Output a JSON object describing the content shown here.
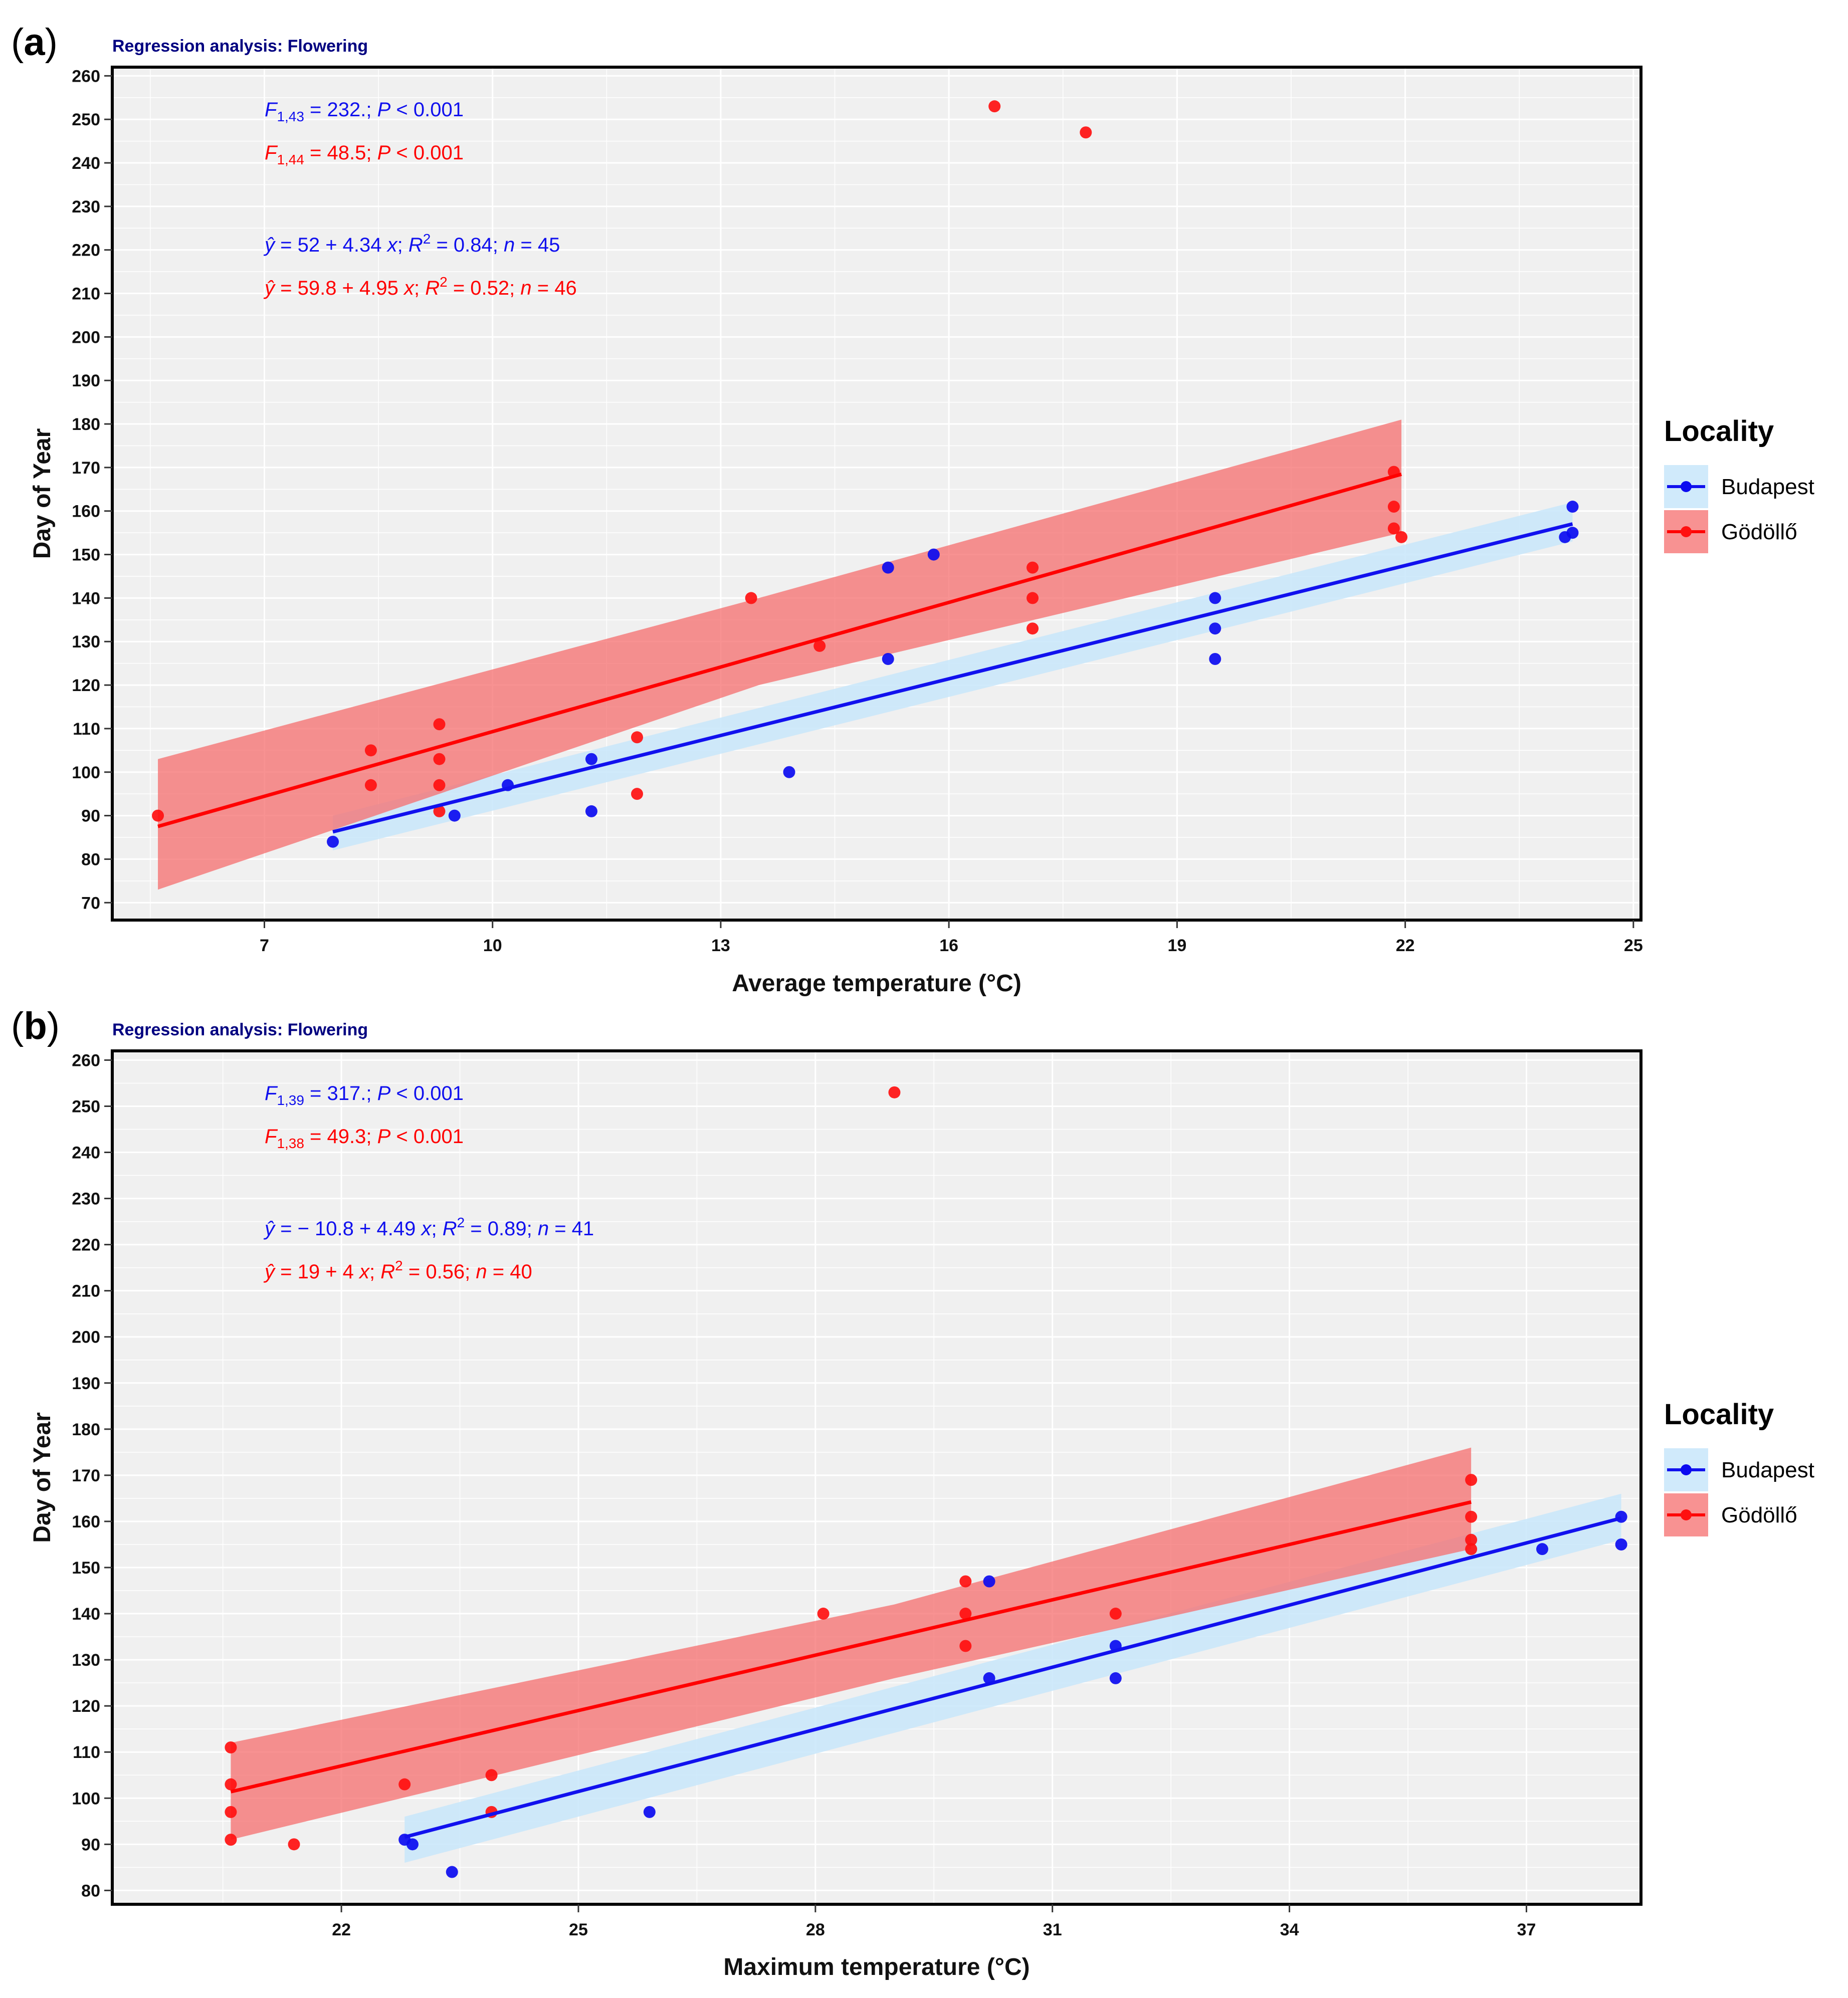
{
  "figure": {
    "legend_title": "Locality",
    "legend_items": [
      {
        "name": "Budapest",
        "color": "#0b0bf0",
        "band": "#d3ecfb"
      },
      {
        "name": "Gödöllő",
        "color": "#ff0000",
        "band": "#f89292"
      }
    ]
  },
  "chart_data": [
    {
      "type": "scatter",
      "panel_label": "(a)",
      "title": "Regression analysis: Flowering",
      "xlabel": "Average temperature (°C)",
      "ylabel": "Day of Year",
      "xlim": [
        5.0,
        25.1
      ],
      "ylim": [
        66,
        262
      ],
      "xticks": [
        7,
        10,
        13,
        16,
        19,
        22,
        25
      ],
      "yticks": [
        70,
        80,
        90,
        100,
        110,
        120,
        130,
        140,
        150,
        160,
        170,
        180,
        190,
        200,
        210,
        220,
        230,
        240,
        250,
        260
      ],
      "annotations": {
        "budapest_f": {
          "label": "F",
          "sub": "1,43",
          "text": " = 232.; ",
          "p": "P",
          "rest": " < 0.001"
        },
        "godollo_f": {
          "label": "F",
          "sub": "1,44",
          "text": " = 48.5; ",
          "p": "P",
          "rest": " < 0.001"
        },
        "budapest_eq": {
          "yhat": "ŷ",
          "eq": " = 52 + 4.34 ",
          "x": "x",
          "r2": "; R",
          "r2sup": "2",
          "r2val": " = 0.84; ",
          "n": "n",
          "nval": " = 45"
        },
        "godollo_eq": {
          "yhat": "ŷ",
          "eq": " = 59.8 + 4.95 ",
          "x": "x",
          "r2": "; R",
          "r2sup": "2",
          "r2val": " = 0.52; ",
          "n": "n",
          "nval": " = 46"
        }
      },
      "series": [
        {
          "name": "Budapest",
          "fit": {
            "intercept": 52,
            "slope": 4.34,
            "x_range": [
              7.9,
              24.2
            ]
          },
          "ci_band": [
            [
              7.9,
              82,
              90
            ],
            [
              24.2,
              153,
              162
            ]
          ],
          "points": [
            [
              7.9,
              84
            ],
            [
              9.5,
              90
            ],
            [
              10.2,
              97
            ],
            [
              11.3,
              103
            ],
            [
              11.3,
              91
            ],
            [
              13.9,
              100
            ],
            [
              15.2,
              147
            ],
            [
              15.2,
              126
            ],
            [
              15.8,
              150
            ],
            [
              19.5,
              140
            ],
            [
              19.5,
              133
            ],
            [
              19.5,
              126
            ],
            [
              24.1,
              154
            ],
            [
              24.2,
              161
            ],
            [
              24.2,
              155
            ]
          ]
        },
        {
          "name": "Gödöllő",
          "fit": {
            "intercept": 59.8,
            "slope": 4.95,
            "x_range": [
              5.6,
              21.95
            ]
          },
          "ci_band": [
            [
              5.6,
              73,
              103
            ],
            [
              13.5,
              120,
              140
            ],
            [
              21.95,
              155,
              181
            ]
          ],
          "points": [
            [
              5.6,
              90
            ],
            [
              8.4,
              105
            ],
            [
              8.4,
              97
            ],
            [
              9.3,
              111
            ],
            [
              9.3,
              103
            ],
            [
              9.3,
              97
            ],
            [
              9.3,
              91
            ],
            [
              11.9,
              108
            ],
            [
              11.9,
              95
            ],
            [
              13.4,
              140
            ],
            [
              14.3,
              129
            ],
            [
              16.6,
              253
            ],
            [
              17.1,
              147
            ],
            [
              17.1,
              140
            ],
            [
              17.1,
              133
            ],
            [
              17.8,
              247
            ],
            [
              21.85,
              169
            ],
            [
              21.85,
              161
            ],
            [
              21.85,
              156
            ],
            [
              21.95,
              154
            ]
          ]
        }
      ]
    },
    {
      "type": "scatter",
      "panel_label": "(b)",
      "title": "Regression analysis: Flowering",
      "xlabel": "Maximum temperature (°C)",
      "ylabel": "Day of Year",
      "xlim": [
        19.1,
        38.45
      ],
      "ylim": [
        77,
        262
      ],
      "xticks": [
        22,
        25,
        28,
        31,
        34,
        37
      ],
      "yticks": [
        80,
        90,
        100,
        110,
        120,
        130,
        140,
        150,
        160,
        170,
        180,
        190,
        200,
        210,
        220,
        230,
        240,
        250,
        260
      ],
      "annotations": {
        "budapest_f": {
          "label": "F",
          "sub": "1,39",
          "text": " = 317.; ",
          "p": "P",
          "rest": " < 0.001"
        },
        "godollo_f": {
          "label": "F",
          "sub": "1,38",
          "text": " = 49.3; ",
          "p": "P",
          "rest": " < 0.001"
        },
        "budapest_eq": {
          "yhat": "ŷ",
          "eq": " = − 10.8 + 4.49 ",
          "x": "x",
          "r2": "; R",
          "r2sup": "2",
          "r2val": " = 0.89; ",
          "n": "n",
          "nval": " = 41"
        },
        "godollo_eq": {
          "yhat": "ŷ",
          "eq": " = 19 + 4 ",
          "x": "x",
          "r2": "; R",
          "r2sup": "2",
          "r2val": " = 0.56; ",
          "n": "n",
          "nval": " = 40"
        }
      },
      "series": [
        {
          "name": "Budapest",
          "fit": {
            "intercept": -10.8,
            "slope": 4.49,
            "x_range": [
              22.8,
              38.2
            ]
          },
          "ci_band": [
            [
              22.8,
              86,
              96
            ],
            [
              38.2,
              156,
              166
            ]
          ],
          "points": [
            [
              22.8,
              91
            ],
            [
              22.9,
              90
            ],
            [
              23.4,
              84
            ],
            [
              25.9,
              97
            ],
            [
              30.2,
              147
            ],
            [
              30.2,
              126
            ],
            [
              31.8,
              133
            ],
            [
              31.8,
              126
            ],
            [
              37.2,
              154
            ],
            [
              38.2,
              161
            ],
            [
              38.2,
              155
            ]
          ]
        },
        {
          "name": "Gödöllő",
          "fit": {
            "intercept": 19,
            "slope": 4,
            "x_range": [
              20.6,
              36.3
            ]
          },
          "ci_band": [
            [
              20.6,
              91,
              112
            ],
            [
              29.0,
              126,
              142
            ],
            [
              36.3,
              154,
              176
            ]
          ],
          "points": [
            [
              20.6,
              111
            ],
            [
              20.6,
              103
            ],
            [
              20.6,
              97
            ],
            [
              20.6,
              91
            ],
            [
              21.4,
              90
            ],
            [
              22.8,
              103
            ],
            [
              23.9,
              105
            ],
            [
              23.9,
              97
            ],
            [
              28.1,
              140
            ],
            [
              29.0,
              253
            ],
            [
              29.9,
              147
            ],
            [
              29.9,
              140
            ],
            [
              29.9,
              133
            ],
            [
              31.8,
              140
            ],
            [
              36.3,
              169
            ],
            [
              36.3,
              161
            ],
            [
              36.3,
              156
            ],
            [
              36.3,
              154
            ]
          ]
        }
      ]
    }
  ]
}
